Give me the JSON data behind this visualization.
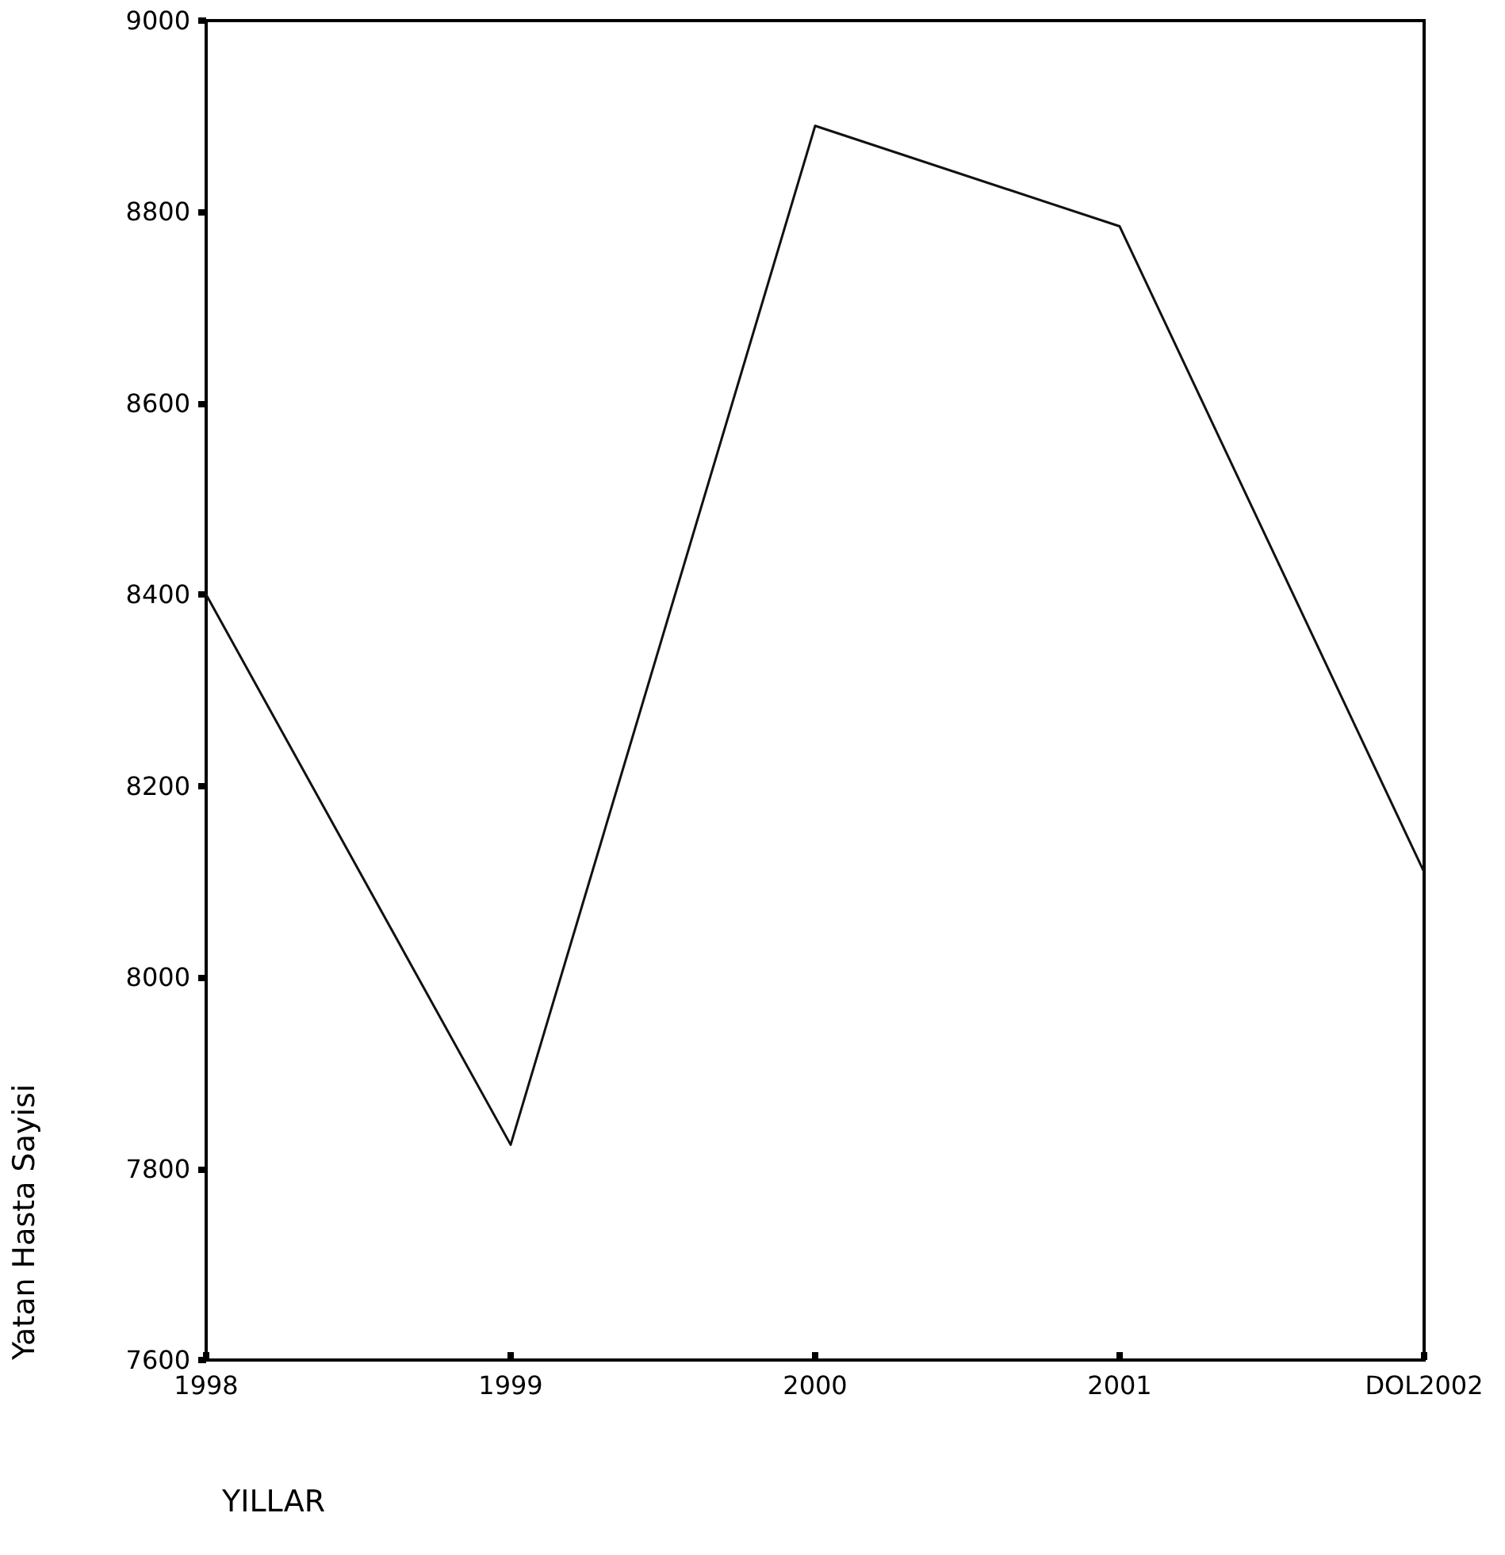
{
  "chart_data": {
    "type": "line",
    "xlabel": "YILLAR",
    "ylabel": "Yatan Hasta Sayisi",
    "categories": [
      "1998",
      "1999",
      "2000",
      "2001",
      "DOL2002"
    ],
    "series": [
      {
        "color": "#111111",
        "values": [
          8400,
          7825,
          8890,
          8785,
          8110
        ]
      }
    ],
    "ylim": [
      7600,
      9000
    ],
    "yticks": [
      7600,
      7800,
      8000,
      8200,
      8400,
      8600,
      8800,
      9000
    ],
    "grid": false,
    "marker": "none",
    "line_style": "solid"
  }
}
